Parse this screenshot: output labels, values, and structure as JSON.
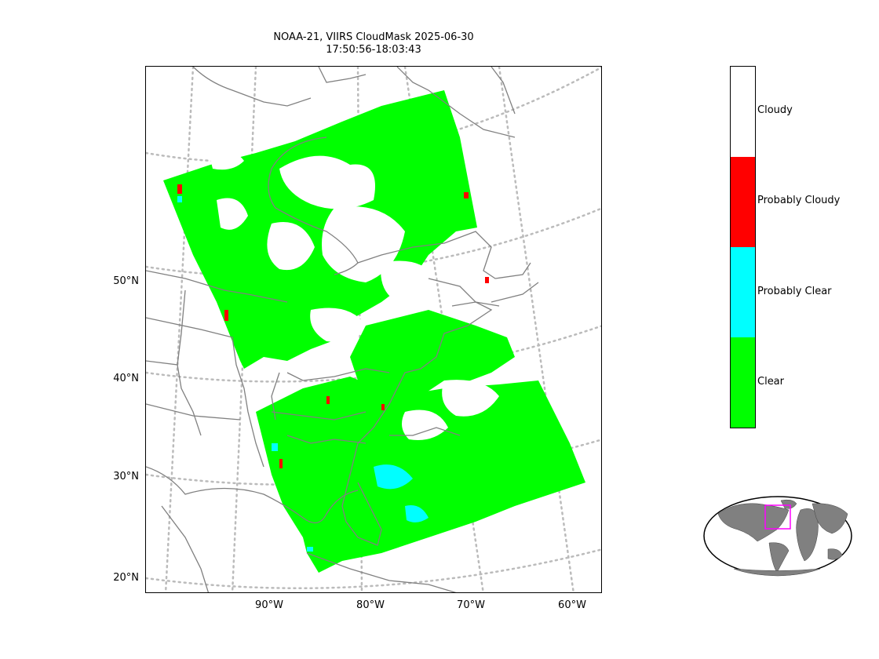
{
  "title": "NOAA-21, VIIRS CloudMask 2025-06-30\n17:50:56-18:03:43",
  "lat_labels": [
    "50°N",
    "40°N",
    "30°N",
    "20°N"
  ],
  "lon_labels": [
    "90°W",
    "80°W",
    "70°W",
    "60°W"
  ],
  "colorbar": {
    "categories": [
      {
        "label": "Cloudy",
        "color": "#ffffff"
      },
      {
        "label": "Probably Cloudy",
        "color": "#ff0000"
      },
      {
        "label": "Probably Clear",
        "color": "#00ffff"
      },
      {
        "label": "Clear",
        "color": "#00ff00"
      }
    ]
  },
  "colors": {
    "coastline": "#808080",
    "graticule": "#bbbbbb",
    "inset_land": "#808080",
    "inset_box": "#ff00ff"
  }
}
